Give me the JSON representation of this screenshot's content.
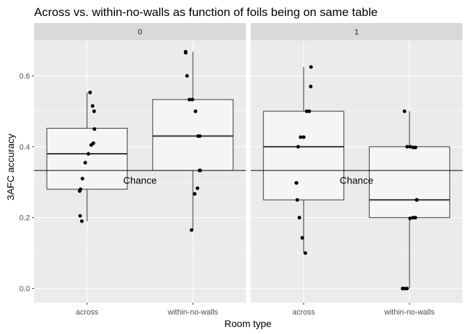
{
  "chart_data": {
    "type": "boxplot",
    "title": "Across vs. within-no-walls as function of foils being on same table",
    "xlabel": "Room type",
    "ylabel": "3AFC accuracy",
    "ylim": [
      -0.04,
      0.7
    ],
    "yticks": [
      0.0,
      0.2,
      0.4,
      0.6
    ],
    "ytick_labels": [
      "0.0",
      "0.2",
      "0.4",
      "0.6"
    ],
    "categories": [
      "across",
      "within-no-walls"
    ],
    "grid": true,
    "chance_line": {
      "value": 0.333,
      "label": "Chance"
    },
    "facets": [
      {
        "label": "0",
        "boxes": [
          {
            "category": "across",
            "min": 0.19,
            "q1": 0.28,
            "median": 0.38,
            "q3": 0.452,
            "max": 0.553,
            "points": [
              0.553,
              0.515,
              0.5,
              0.45,
              0.41,
              0.405,
              0.38,
              0.355,
              0.31,
              0.28,
              0.275,
              0.205,
              0.19
            ]
          },
          {
            "category": "within-no-walls",
            "min": 0.165,
            "q1": 0.333,
            "median": 0.43,
            "q3": 0.533,
            "max": 0.668,
            "points": [
              0.668,
              0.665,
              0.6,
              0.533,
              0.533,
              0.5,
              0.43,
              0.43,
              0.333,
              0.333,
              0.283,
              0.267,
              0.165
            ]
          }
        ]
      },
      {
        "label": "1",
        "boxes": [
          {
            "category": "across",
            "min": 0.1,
            "q1": 0.25,
            "median": 0.4,
            "q3": 0.5,
            "max": 0.625,
            "points": [
              0.625,
              0.57,
              0.5,
              0.5,
              0.427,
              0.427,
              0.4,
              0.298,
              0.298,
              0.25,
              0.2,
              0.143,
              0.1
            ]
          },
          {
            "category": "within-no-walls",
            "min": 0.0,
            "q1": 0.2,
            "median": 0.25,
            "q3": 0.4,
            "max": 0.5,
            "points": [
              0.5,
              0.4,
              0.4,
              0.398,
              0.398,
              0.25,
              0.25,
              0.2,
              0.2,
              0.198,
              0.0,
              0.0,
              0.0
            ]
          }
        ]
      }
    ]
  },
  "colors": {
    "panel_bg": "#ebebeb",
    "strip_bg": "#d9d9d9",
    "grid_major": "#ffffff",
    "box_fill": "#f5f5f5",
    "box_stroke": "#333333",
    "point": "#000000",
    "chance_line": "#000000"
  }
}
